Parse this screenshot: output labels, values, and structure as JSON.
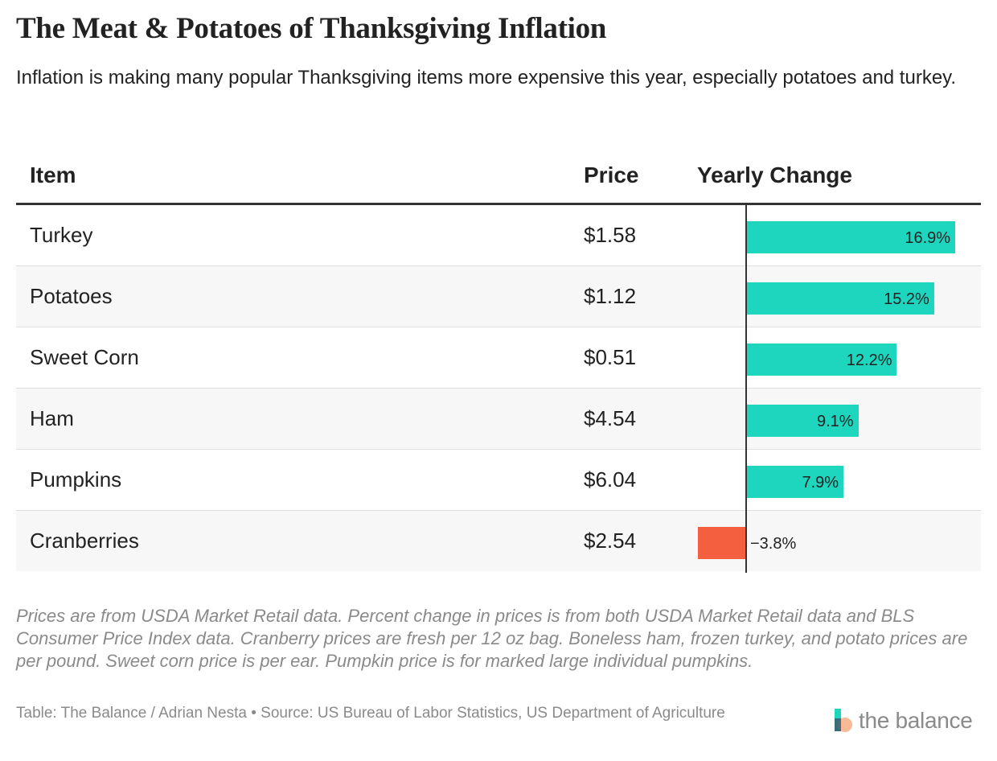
{
  "title": "The Meat & Potatoes of Thanksgiving Inflation",
  "subtitle": "Inflation is making many popular Thanksgiving items more expensive this year, especially potatoes and turkey.",
  "colors": {
    "positive": "#1ED6BE",
    "negative": "#F4603F",
    "axis": "#333333"
  },
  "chart_data": {
    "type": "table",
    "title": "The Meat & Potatoes of Thanksgiving Inflation",
    "columns": [
      "Item",
      "Price",
      "Yearly Change"
    ],
    "rows": [
      {
        "item": "Turkey",
        "price": "$1.58",
        "change": 16.9,
        "change_label": "16.9%"
      },
      {
        "item": "Potatoes",
        "price": "$1.12",
        "change": 15.2,
        "change_label": "15.2%"
      },
      {
        "item": "Sweet Corn",
        "price": "$0.51",
        "change": 12.2,
        "change_label": "12.2%"
      },
      {
        "item": "Ham",
        "price": "$4.54",
        "change": 9.1,
        "change_label": "9.1%"
      },
      {
        "item": "Pumpkins",
        "price": "$6.04",
        "change": 7.9,
        "change_label": "7.9%"
      },
      {
        "item": "Cranberries",
        "price": "$2.54",
        "change": -3.8,
        "change_label": "−3.8%"
      }
    ],
    "change_unit": "percent",
    "change_range": [
      -3.8,
      16.9
    ]
  },
  "notes": "Prices are from USDA Market Retail data. Percent change in prices is from both USDA Market Retail data and BLS Consumer Price Index data. Cranberry prices are fresh per 12 oz bag. Boneless ham, frozen turkey, and potato prices are per pound. Sweet corn price is per ear. Pumpkin price is for marked large individual pumpkins.",
  "source": "Table: The Balance / Adrian Nesta • Source: US Bureau of Labor Statistics, US Department of Agriculture",
  "brand": {
    "name": "the balance",
    "icon": "the-balance-logo-icon"
  }
}
